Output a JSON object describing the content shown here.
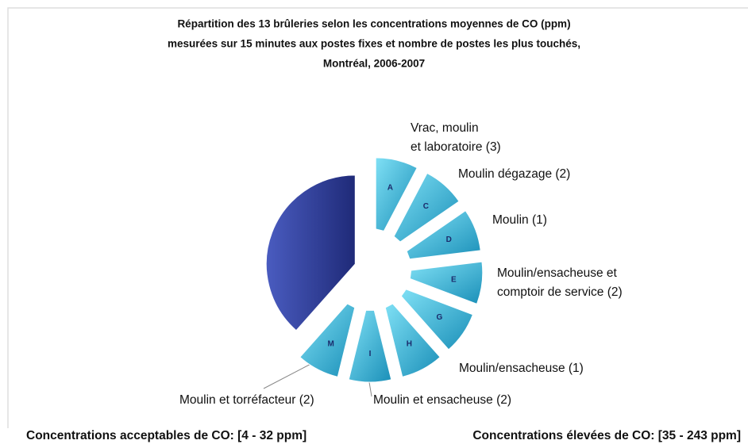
{
  "chart_data": {
    "type": "pie",
    "title": [
      "Répartition des 13 brûleries selon les concentrations moyennes de CO (ppm)",
      "mesurées sur 15 minutes aux postes fixes et nombre de postes les plus touchés,",
      "Montréal, 2006-2007"
    ],
    "categories": [
      "A",
      "C",
      "D",
      "E",
      "G",
      "H",
      "I",
      "M",
      null
    ],
    "values": [
      1,
      1,
      1,
      1,
      1,
      1,
      1,
      1,
      5
    ],
    "colors": [
      "#2bb8dc",
      "#2bb8dc",
      "#2bb8dc",
      "#2bb8dc",
      "#2bb8dc",
      "#2bb8dc",
      "#2bb8dc",
      "#2bb8dc",
      "#2f3d91"
    ],
    "annotations": [
      [
        "Vrac, moulin",
        "et laboratoire (3)"
      ],
      [
        "Moulin dégazage (2)"
      ],
      [
        "Moulin (1)"
      ],
      [
        "Moulin/ensacheuse et",
        "comptoir de service (2)"
      ],
      [
        "Moulin/ensacheuse (1)"
      ],
      [
        "Moulin et ensacheuse (2)"
      ],
      [
        "Moulin et torréfacteur (2)"
      ]
    ],
    "legend": [
      "Concentrations acceptables de CO: [4 - 32 ppm]",
      "Concentrations élevées de CO: [35 - 243 ppm]"
    ]
  }
}
